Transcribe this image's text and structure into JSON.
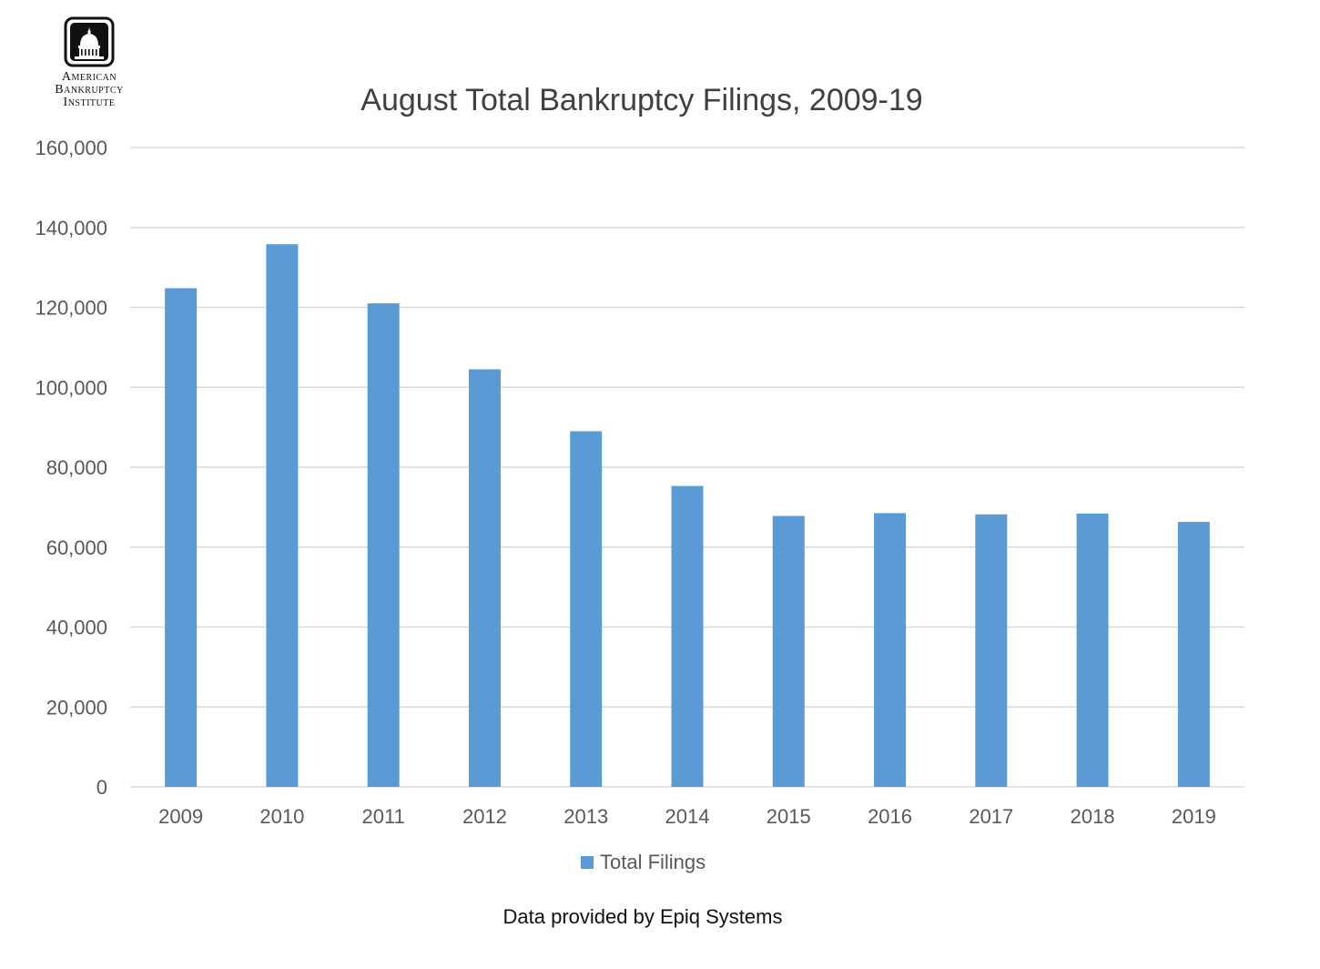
{
  "logo": {
    "lines": [
      "American",
      "Bankruptcy",
      "Institute"
    ]
  },
  "footer": {
    "note": "Data provided by Epiq Systems"
  },
  "colors": {
    "bar": "#5b9bd5",
    "grid": "#d9d9d9",
    "text": "#595959",
    "title": "#404040"
  },
  "chart_data": {
    "type": "bar",
    "title": "August Total Bankruptcy Filings, 2009-19",
    "xlabel": "",
    "ylabel": "",
    "categories": [
      "2009",
      "2010",
      "2011",
      "2012",
      "2013",
      "2014",
      "2015",
      "2016",
      "2017",
      "2018",
      "2019"
    ],
    "series": [
      {
        "name": "Total Filings",
        "values": [
          124800,
          135800,
          121000,
          104500,
          89000,
          75300,
          67800,
          68500,
          68200,
          68400,
          66300
        ]
      }
    ],
    "ylim": [
      0,
      160000
    ],
    "yticks": [
      0,
      20000,
      40000,
      60000,
      80000,
      100000,
      120000,
      140000,
      160000
    ],
    "ytick_labels": [
      "0",
      "20,000",
      "40,000",
      "60,000",
      "80,000",
      "100,000",
      "120,000",
      "140,000",
      "160,000"
    ],
    "grid": true,
    "legend_position": "bottom"
  }
}
